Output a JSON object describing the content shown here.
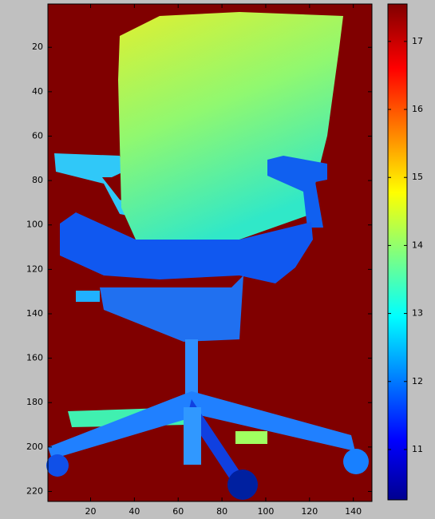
{
  "chart_data": {
    "type": "image",
    "colormap": "jet",
    "xlim": [
      0.5,
      148.5
    ],
    "ylim": [
      0.5,
      224.5
    ],
    "y_reversed": true,
    "xticks": [
      20,
      40,
      60,
      80,
      100,
      120,
      140
    ],
    "yticks": [
      20,
      40,
      60,
      80,
      100,
      120,
      140,
      160,
      180,
      200,
      220
    ],
    "colorbar": {
      "clim": [
        10.26,
        17.55
      ],
      "ticks": [
        11,
        12,
        13,
        14,
        15,
        16,
        17
      ]
    }
  }
}
